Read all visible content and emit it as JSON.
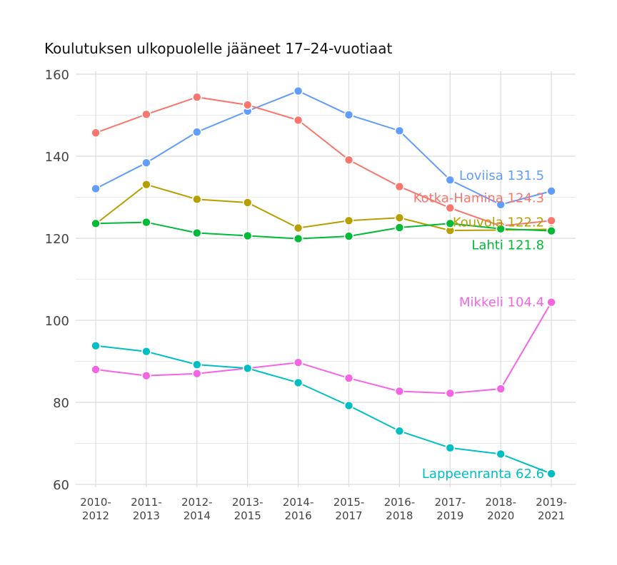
{
  "chart_data": {
    "type": "line",
    "title": "Koulutuksen ulkopuolelle jääneet 17–24-vuotiaat",
    "xlabel": "",
    "ylabel": "",
    "ylim": [
      60,
      160
    ],
    "yticks": [
      60,
      80,
      100,
      120,
      140,
      160
    ],
    "grid": true,
    "categories": [
      [
        "2010-",
        "2012"
      ],
      [
        "2011-",
        "2013"
      ],
      [
        "2012-",
        "2014"
      ],
      [
        "2013-",
        "2015"
      ],
      [
        "2014-",
        "2016"
      ],
      [
        "2015-",
        "2017"
      ],
      [
        "2016-",
        "2018"
      ],
      [
        "2017-",
        "2019"
      ],
      [
        "2018-",
        "2020"
      ],
      [
        "2019-",
        "2021"
      ]
    ],
    "series": [
      {
        "name": "Loviisa",
        "color": "#619CFF",
        "end_label": "Loviisa 131.5",
        "values": [
          132.1,
          138.4,
          145.9,
          151.0,
          155.9,
          150.1,
          146.2,
          134.2,
          128.2,
          131.5
        ]
      },
      {
        "name": "Kotka-Hamina",
        "color": "#F8766D",
        "end_label": "Kotka-Hamina 124.3",
        "values": [
          145.7,
          150.2,
          154.4,
          152.5,
          148.8,
          139.1,
          132.6,
          127.4,
          123.0,
          124.3
        ]
      },
      {
        "name": "Kouvola",
        "color": "#B79F00",
        "end_label": "Kouvola 122.2",
        "values": [
          123.5,
          133.1,
          129.5,
          128.7,
          122.5,
          124.3,
          125.0,
          121.9,
          122.0,
          122.2
        ]
      },
      {
        "name": "Lahti",
        "color": "#00BA38",
        "end_label": "Lahti 121.8",
        "values": [
          123.6,
          123.9,
          121.3,
          120.6,
          119.9,
          120.5,
          122.6,
          123.6,
          122.3,
          121.8
        ]
      },
      {
        "name": "Mikkeli",
        "color": "#F564E3",
        "end_label": "Mikkeli 104.4",
        "values": [
          88.0,
          86.5,
          87.0,
          88.3,
          89.7,
          85.9,
          82.7,
          82.2,
          83.3,
          104.4
        ]
      },
      {
        "name": "Lappeenranta",
        "color": "#00BFC4",
        "end_label": "Lappeenranta 62.6",
        "values": [
          93.8,
          92.4,
          89.2,
          88.3,
          84.8,
          79.2,
          73.0,
          68.9,
          67.4,
          62.6
        ]
      }
    ]
  }
}
